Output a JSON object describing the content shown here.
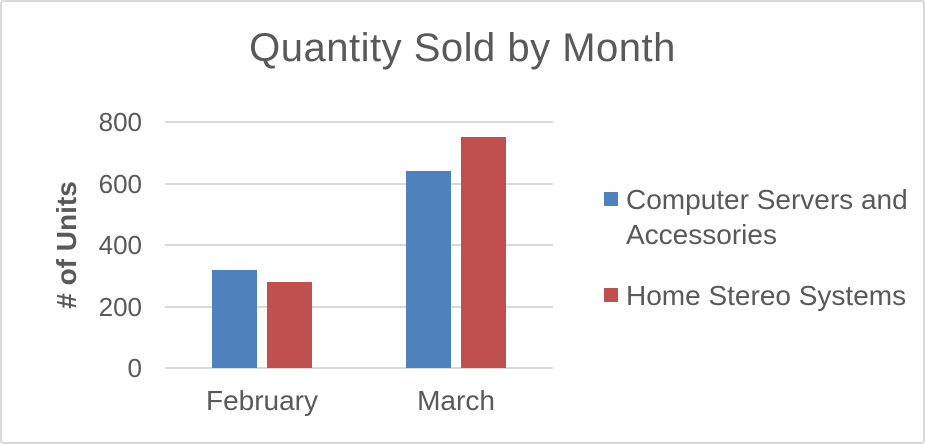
{
  "chart_data": {
    "type": "bar",
    "title": "Quantity Sold by Month",
    "xlabel": "",
    "ylabel": "# of Units",
    "categories": [
      "February",
      "March"
    ],
    "series": [
      {
        "name": "Computer Servers and Accessories",
        "color": "#4F81BD",
        "values": [
          320,
          640
        ]
      },
      {
        "name": "Home Stereo Systems",
        "color": "#C0504D",
        "values": [
          280,
          750
        ]
      }
    ],
    "ylim": [
      0,
      800
    ],
    "yticks": [
      0,
      200,
      400,
      600,
      800
    ],
    "grid": true,
    "legend_position": "right"
  },
  "colors": {
    "text": "#595959",
    "gridline": "#D9D9D9",
    "frame_border": "#D9D9D9",
    "background": "#FFFFFF"
  }
}
